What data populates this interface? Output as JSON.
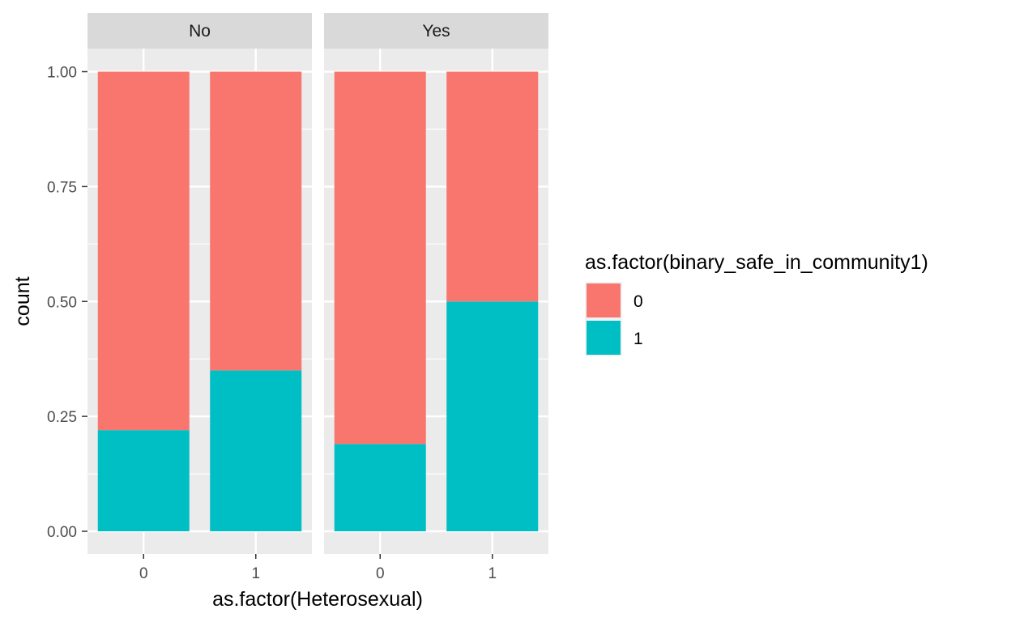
{
  "chart_data": {
    "type": "bar",
    "stacked": true,
    "position": "fill",
    "xlabel": "as.factor(Heterosexual)",
    "ylabel": "count",
    "ylim": [
      0,
      1
    ],
    "y_ticks": [
      "0.00",
      "0.25",
      "0.50",
      "0.75",
      "1.00"
    ],
    "grid": true,
    "legend": {
      "title": "as.factor(binary_safe_in_community1)",
      "placement": "right",
      "items": [
        {
          "label": "0",
          "color": "#F8766D"
        },
        {
          "label": "1",
          "color": "#00BFC4"
        }
      ]
    },
    "facets": [
      {
        "label": "No",
        "categories": [
          "0",
          "1"
        ],
        "series": [
          {
            "name": "0",
            "values": [
              0.78,
              0.65
            ]
          },
          {
            "name": "1",
            "values": [
              0.22,
              0.35
            ]
          }
        ]
      },
      {
        "label": "Yes",
        "categories": [
          "0",
          "1"
        ],
        "series": [
          {
            "name": "0",
            "values": [
              0.81,
              0.5
            ]
          },
          {
            "name": "1",
            "values": [
              0.19,
              0.5
            ]
          }
        ]
      }
    ]
  }
}
